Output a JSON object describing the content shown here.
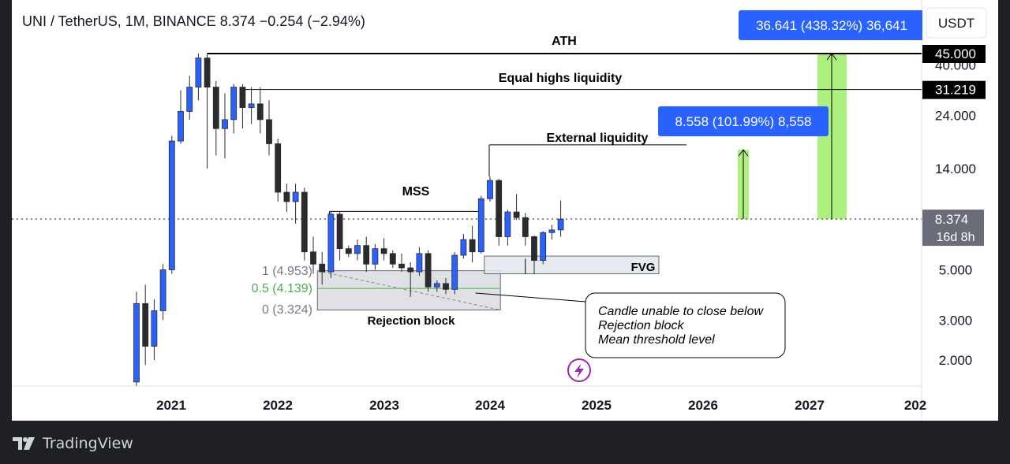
{
  "header": {
    "symbol": "UNI / TetherUS, 1M, BINANCE",
    "last_price": "8.374",
    "change": "−0.254 (−2.94%)",
    "currency_button": "USDT"
  },
  "footer": {
    "brand": "TradingView"
  },
  "chart_data": {
    "type": "candlestick",
    "scale": "log",
    "ylim": [
      1.6,
      60
    ],
    "y_ticks": [
      {
        "value": 40,
        "label": "40.000"
      },
      {
        "value": 24,
        "label": "24.000"
      },
      {
        "value": 14,
        "label": "14.000"
      },
      {
        "value": 5,
        "label": "5.000"
      },
      {
        "value": 3,
        "label": "3.000"
      },
      {
        "value": 2,
        "label": "2.000"
      }
    ],
    "price_tags": [
      {
        "value": 45,
        "label": "45.000",
        "style": "black"
      },
      {
        "value": 31.219,
        "label": "31.219",
        "style": "black"
      },
      {
        "value": 8.374,
        "label": "8.374",
        "sublabel": "16d 8h",
        "style": "grey"
      }
    ],
    "x_ticks": [
      "2021",
      "2022",
      "2023",
      "2024",
      "2025",
      "2026",
      "2027",
      "202"
    ],
    "first_candle": "2020-09",
    "candles": [
      {
        "o": 1.6,
        "h": 4.0,
        "l": 1.5,
        "c": 3.55,
        "dir": "up"
      },
      {
        "o": 3.55,
        "h": 4.3,
        "l": 1.9,
        "c": 2.3,
        "dir": "down"
      },
      {
        "o": 2.3,
        "h": 3.7,
        "l": 2.0,
        "c": 3.3,
        "dir": "up"
      },
      {
        "o": 3.3,
        "h": 5.3,
        "l": 3.0,
        "c": 5.0,
        "dir": "up"
      },
      {
        "o": 5.0,
        "h": 19.5,
        "l": 4.8,
        "c": 18.5,
        "dir": "up"
      },
      {
        "o": 18.5,
        "h": 31,
        "l": 18,
        "c": 25,
        "dir": "up"
      },
      {
        "o": 25,
        "h": 36,
        "l": 23,
        "c": 32,
        "dir": "up"
      },
      {
        "o": 32,
        "h": 45,
        "l": 28,
        "c": 43,
        "dir": "up"
      },
      {
        "o": 43,
        "h": 44.9,
        "l": 14,
        "c": 32,
        "dir": "down"
      },
      {
        "o": 32,
        "h": 34,
        "l": 16,
        "c": 21,
        "dir": "down"
      },
      {
        "o": 21,
        "h": 30,
        "l": 15.5,
        "c": 23,
        "dir": "up"
      },
      {
        "o": 23,
        "h": 33,
        "l": 20,
        "c": 32,
        "dir": "up"
      },
      {
        "o": 32,
        "h": 33,
        "l": 21,
        "c": 26,
        "dir": "down"
      },
      {
        "o": 26,
        "h": 32,
        "l": 22,
        "c": 27,
        "dir": "up"
      },
      {
        "o": 27,
        "h": 32,
        "l": 20,
        "c": 23,
        "dir": "down"
      },
      {
        "o": 23,
        "h": 28,
        "l": 16,
        "c": 18,
        "dir": "down"
      },
      {
        "o": 18,
        "h": 19,
        "l": 10,
        "c": 11,
        "dir": "down"
      },
      {
        "o": 11,
        "h": 12,
        "l": 9,
        "c": 10,
        "dir": "down"
      },
      {
        "o": 10,
        "h": 12,
        "l": 8,
        "c": 11,
        "dir": "up"
      },
      {
        "o": 11,
        "h": 11.5,
        "l": 5.5,
        "c": 6,
        "dir": "down"
      },
      {
        "o": 6,
        "h": 7,
        "l": 4.8,
        "c": 5.3,
        "dir": "down"
      },
      {
        "o": 5.3,
        "h": 6,
        "l": 4.3,
        "c": 4.9,
        "dir": "down"
      },
      {
        "o": 4.9,
        "h": 9.0,
        "l": 4.6,
        "c": 8.8,
        "dir": "up"
      },
      {
        "o": 8.8,
        "h": 9.0,
        "l": 5.5,
        "c": 6.2,
        "dir": "down"
      },
      {
        "o": 6.2,
        "h": 6.4,
        "l": 5.7,
        "c": 5.9,
        "dir": "down"
      },
      {
        "o": 5.9,
        "h": 6.8,
        "l": 5.5,
        "c": 6.4,
        "dir": "up"
      },
      {
        "o": 6.4,
        "h": 7.0,
        "l": 4.9,
        "c": 5.3,
        "dir": "down"
      },
      {
        "o": 5.3,
        "h": 6.5,
        "l": 5.0,
        "c": 6.2,
        "dir": "up"
      },
      {
        "o": 6.2,
        "h": 6.9,
        "l": 5.5,
        "c": 5.9,
        "dir": "down"
      },
      {
        "o": 5.9,
        "h": 6.1,
        "l": 5.1,
        "c": 5.3,
        "dir": "down"
      },
      {
        "o": 5.3,
        "h": 5.9,
        "l": 4.9,
        "c": 5.1,
        "dir": "down"
      },
      {
        "o": 5.1,
        "h": 5.4,
        "l": 3.8,
        "c": 4.9,
        "dir": "down"
      },
      {
        "o": 4.9,
        "h": 6.3,
        "l": 4.7,
        "c": 5.9,
        "dir": "up"
      },
      {
        "o": 5.9,
        "h": 6.1,
        "l": 4.0,
        "c": 4.2,
        "dir": "down"
      },
      {
        "o": 4.2,
        "h": 4.5,
        "l": 4.0,
        "c": 4.35,
        "dir": "up"
      },
      {
        "o": 4.35,
        "h": 4.6,
        "l": 3.9,
        "c": 4.1,
        "dir": "down"
      },
      {
        "o": 4.1,
        "h": 6.0,
        "l": 3.9,
        "c": 5.8,
        "dir": "up"
      },
      {
        "o": 5.8,
        "h": 7.2,
        "l": 5.6,
        "c": 6.8,
        "dir": "up"
      },
      {
        "o": 6.8,
        "h": 7.8,
        "l": 5.4,
        "c": 6.0,
        "dir": "down"
      },
      {
        "o": 6.0,
        "h": 10.6,
        "l": 5.9,
        "c": 10.3,
        "dir": "up"
      },
      {
        "o": 10.3,
        "h": 12.9,
        "l": 10.0,
        "c": 12.4,
        "dir": "up"
      },
      {
        "o": 12.4,
        "h": 12.6,
        "l": 6.4,
        "c": 7.0,
        "dir": "down"
      },
      {
        "o": 7.0,
        "h": 9.2,
        "l": 6.4,
        "c": 9.0,
        "dir": "up"
      },
      {
        "o": 9.0,
        "h": 10.8,
        "l": 8.3,
        "c": 8.5,
        "dir": "down"
      },
      {
        "o": 8.5,
        "h": 8.9,
        "l": 6.4,
        "c": 7.0,
        "dir": "down"
      },
      {
        "o": 7.0,
        "h": 7.1,
        "l": 4.8,
        "c": 5.5,
        "dir": "down"
      },
      {
        "o": 5.5,
        "h": 7.4,
        "l": 5.3,
        "c": 7.3,
        "dir": "up"
      },
      {
        "o": 7.3,
        "h": 7.9,
        "l": 6.8,
        "c": 7.5,
        "dir": "up"
      },
      {
        "o": 7.5,
        "h": 10.1,
        "l": 7.0,
        "c": 8.374,
        "dir": "up"
      }
    ],
    "annotations": {
      "ath_label": "ATH",
      "equal_highs_label": "Equal highs liquidity",
      "external_liquidity_label": "External liquidity",
      "mss_label": "MSS",
      "rejection_block_label": "Rejection block",
      "fvg_label": "FVG",
      "fib_1": "1 (4.953)",
      "fib_05": "0.5 (4.139)",
      "fib_0": "0 (3.324)",
      "fib_levels": [
        4.953,
        4.139,
        3.324
      ],
      "note_line1": "Candle unable to close below",
      "note_line2": "Rejection block",
      "note_line3": "Mean threshold level",
      "target1_label": "8.558 (101.99%) 8,558",
      "target2_label": "36.641 (438.32%) 36,641",
      "ath_level": 45,
      "equal_highs_level": 31.219,
      "external_liquidity_level": 17.8,
      "mss_level": 9.05,
      "fvg_range": [
        4.8,
        5.75
      ],
      "rejection_block_range": [
        3.324,
        4.953
      ],
      "target1_range": [
        8.374,
        16.93
      ],
      "target2_range": [
        8.374,
        45.0
      ]
    },
    "colors": {
      "up": "#2962ff",
      "down": "#2a2b2e",
      "target_fill": "#aef07f",
      "label_bg": "#2962ff",
      "fib_mid": "#4caf50",
      "fib_text": "#787b86",
      "purple": "#9c27b0"
    }
  }
}
